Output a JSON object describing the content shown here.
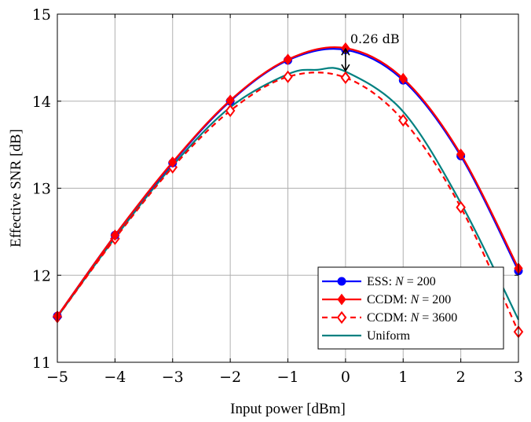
{
  "chart_data": {
    "type": "line",
    "xlabel": "Input power [dBm]",
    "ylabel": "Effective SNR [dB]",
    "xlim": [
      -5,
      3
    ],
    "ylim": [
      11,
      15
    ],
    "xticks": [
      -5,
      -4,
      -3,
      -2,
      -1,
      0,
      1,
      2,
      3
    ],
    "yticks": [
      11,
      12,
      13,
      14,
      15
    ],
    "xtick_labels": [
      "−5",
      "−4",
      "−3",
      "−2",
      "−1",
      "0",
      "1",
      "2",
      "3"
    ],
    "ytick_labels": [
      "11",
      "12",
      "13",
      "14",
      "15"
    ],
    "grid": true,
    "legend_position": "bottom-right",
    "series": [
      {
        "name": "ESS: N = 200",
        "legend_prefix": "ESS: ",
        "legend_var": "N",
        "legend_suffix": " = 200",
        "color": "#0000ff",
        "style": "solid",
        "marker": "circle",
        "x": [
          -5,
          -4,
          -3,
          -2,
          -1,
          0,
          1,
          2,
          3
        ],
        "y": [
          11.53,
          12.46,
          13.29,
          14.0,
          14.47,
          14.59,
          14.24,
          13.37,
          12.05
        ]
      },
      {
        "name": "CCDM: N = 200",
        "legend_prefix": "CCDM: ",
        "legend_var": "N",
        "legend_suffix": " = 200",
        "color": "#ff0000",
        "style": "solid",
        "marker": "diamond-filled",
        "x": [
          -5,
          -4,
          -3,
          -2,
          -1,
          0,
          1,
          2,
          3
        ],
        "y": [
          11.53,
          12.46,
          13.3,
          14.01,
          14.48,
          14.61,
          14.26,
          13.39,
          12.08
        ]
      },
      {
        "name": "CCDM: N = 3600",
        "legend_prefix": "CCDM: ",
        "legend_var": "N",
        "legend_suffix": " = 3600",
        "color": "#ff0000",
        "style": "dashed",
        "marker": "diamond-open",
        "x": [
          -5,
          -4,
          -3,
          -2,
          -1,
          0,
          1,
          2,
          3
        ],
        "y": [
          11.52,
          12.42,
          13.24,
          13.89,
          14.28,
          14.27,
          13.78,
          12.78,
          11.35
        ]
      },
      {
        "name": "Uniform",
        "legend_prefix": "Uniform",
        "legend_var": "",
        "legend_suffix": "",
        "color": "#008080",
        "style": "solid",
        "marker": "none",
        "x": [
          -5,
          -4,
          -3,
          -2,
          -1,
          -0.5,
          0,
          1,
          2,
          3
        ],
        "y": [
          11.52,
          12.43,
          13.26,
          13.93,
          14.31,
          14.36,
          14.34,
          13.88,
          12.83,
          11.49
        ]
      }
    ],
    "annotation": {
      "text": "0.26 dB",
      "x": 0,
      "y_from": 14.61,
      "y_to": 14.34
    }
  }
}
